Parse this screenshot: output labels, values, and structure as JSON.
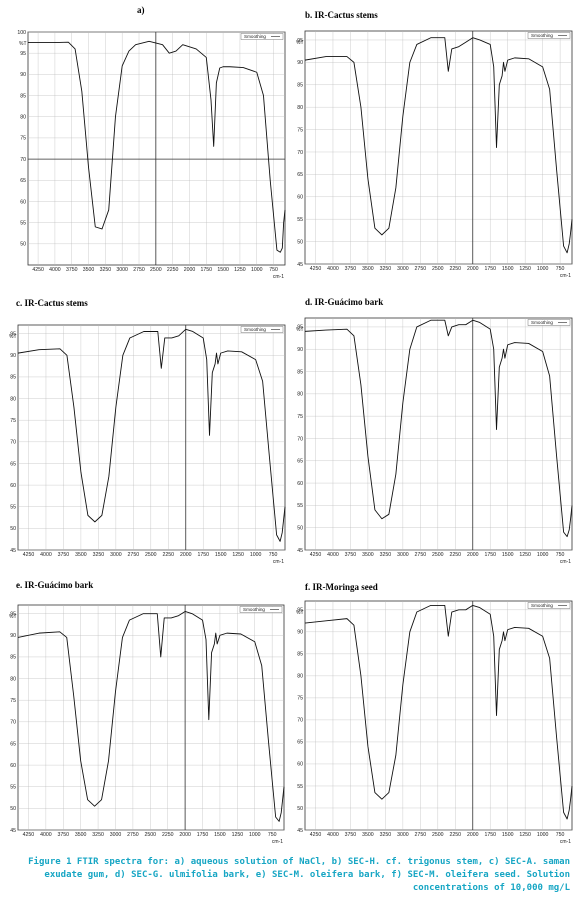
{
  "chart_data": [
    {
      "id": "a",
      "type": "line",
      "title": "a)",
      "xlabel": "cm-1",
      "ylabel": "%T",
      "legend": "Smoothing",
      "legend_position": "top-right",
      "grid": true,
      "xlim": [
        4400,
        580
      ],
      "ylim": [
        45,
        100
      ],
      "x_ticks": [
        4250,
        4000,
        3750,
        3500,
        3250,
        3000,
        2750,
        2500,
        2250,
        2000,
        1750,
        1500,
        1250,
        1000,
        750
      ],
      "y_ticks": [
        50,
        55,
        60,
        65,
        70,
        75,
        80,
        85,
        90,
        95,
        100
      ],
      "highlight_lines": {
        "x": 2500,
        "y": 70
      },
      "x": [
        4400,
        4000,
        3800,
        3700,
        3600,
        3500,
        3400,
        3300,
        3200,
        3100,
        3000,
        2900,
        2800,
        2600,
        2400,
        2300,
        2200,
        2100,
        1900,
        1750,
        1680,
        1640,
        1600,
        1550,
        1500,
        1400,
        1200,
        1000,
        900,
        800,
        700,
        650,
        620,
        600,
        580
      ],
      "y": [
        97.5,
        97.5,
        97.6,
        96,
        86,
        68,
        54,
        53.5,
        58,
        80,
        92,
        95.5,
        97,
        97.8,
        97,
        95,
        95.5,
        97,
        96,
        94,
        84,
        73,
        88,
        91.5,
        91.8,
        91.8,
        91.6,
        90.5,
        85,
        65,
        48.5,
        48,
        49,
        55,
        58
      ]
    },
    {
      "id": "b",
      "type": "line",
      "title": "b.  IR-Cactus stems",
      "xlabel": "cm-1",
      "ylabel": "%T",
      "legend": "Smoothing",
      "legend_position": "top-right",
      "grid": true,
      "xlim": [
        4400,
        580
      ],
      "ylim": [
        45,
        97
      ],
      "x_ticks": [
        4250,
        4000,
        3750,
        3500,
        3250,
        3000,
        2750,
        2500,
        2250,
        2000,
        1750,
        1500,
        1250,
        1000,
        750
      ],
      "y_ticks": [
        45,
        50,
        55,
        60,
        65,
        70,
        75,
        80,
        85,
        90,
        95
      ],
      "highlight_lines": {
        "x": 2000
      },
      "x": [
        4400,
        4100,
        3800,
        3700,
        3600,
        3500,
        3400,
        3300,
        3200,
        3100,
        3000,
        2900,
        2800,
        2600,
        2400,
        2350,
        2300,
        2200,
        2100,
        2000,
        1900,
        1750,
        1700,
        1660,
        1620,
        1580,
        1560,
        1540,
        1500,
        1400,
        1200,
        1000,
        900,
        800,
        700,
        650,
        620,
        600,
        580
      ],
      "y": [
        90.5,
        91.3,
        91.3,
        90,
        80,
        64,
        53,
        51.5,
        53,
        62,
        78,
        90,
        94,
        95.5,
        95.5,
        88,
        93,
        93.5,
        94.5,
        95.5,
        95,
        94,
        89,
        71,
        85,
        87,
        90,
        88,
        90.5,
        91,
        90.8,
        89,
        84,
        66,
        49,
        47.5,
        49.5,
        52,
        55
      ]
    },
    {
      "id": "c",
      "type": "line",
      "title": "c.  IR-Cactus stems",
      "xlabel": "cm-1",
      "ylabel": "%T",
      "legend": "Smoothing",
      "legend_position": "top-right",
      "grid": true,
      "xlim": [
        4400,
        580
      ],
      "ylim": [
        45,
        97
      ],
      "x_ticks": [
        4250,
        4000,
        3750,
        3500,
        3250,
        3000,
        2750,
        2500,
        2250,
        2000,
        1750,
        1500,
        1250,
        1000,
        750
      ],
      "y_ticks": [
        45,
        50,
        55,
        60,
        65,
        70,
        75,
        80,
        85,
        90,
        95
      ],
      "highlight_lines": {
        "x": 2000
      },
      "x": [
        4400,
        4100,
        3800,
        3700,
        3600,
        3500,
        3400,
        3300,
        3200,
        3100,
        3000,
        2900,
        2800,
        2600,
        2400,
        2350,
        2300,
        2200,
        2100,
        2000,
        1900,
        1750,
        1700,
        1660,
        1620,
        1580,
        1560,
        1540,
        1500,
        1400,
        1200,
        1000,
        900,
        800,
        700,
        650,
        620,
        600,
        580
      ],
      "y": [
        90.5,
        91.3,
        91.5,
        90,
        78,
        63,
        53,
        51.5,
        53,
        62,
        78,
        90,
        94,
        95.5,
        95.5,
        87,
        94,
        94,
        94.5,
        96,
        95.5,
        94,
        89,
        71.5,
        86,
        88,
        90.5,
        88,
        90.5,
        91,
        90.8,
        89,
        84,
        66,
        48.5,
        47,
        49,
        52,
        55
      ]
    },
    {
      "id": "d",
      "type": "line",
      "title": "d.  IR-Guácimo bark",
      "xlabel": "cm-1",
      "ylabel": "%T",
      "legend": "Smoothing",
      "legend_position": "top-right",
      "grid": true,
      "xlim": [
        4400,
        580
      ],
      "ylim": [
        45,
        97
      ],
      "x_ticks": [
        4250,
        4000,
        3750,
        3500,
        3250,
        3000,
        2750,
        2500,
        2250,
        2000,
        1750,
        1500,
        1250,
        1000,
        750
      ],
      "y_ticks": [
        45,
        50,
        55,
        60,
        65,
        70,
        75,
        80,
        85,
        90,
        95
      ],
      "highlight_lines": {
        "x": 2000
      },
      "x": [
        4400,
        4100,
        3800,
        3700,
        3600,
        3500,
        3400,
        3300,
        3200,
        3100,
        3000,
        2900,
        2800,
        2600,
        2400,
        2350,
        2300,
        2200,
        2100,
        2000,
        1900,
        1750,
        1700,
        1660,
        1620,
        1580,
        1560,
        1540,
        1500,
        1400,
        1200,
        1000,
        900,
        800,
        700,
        650,
        620,
        600,
        580
      ],
      "y": [
        94,
        94.3,
        94.5,
        93,
        82,
        66,
        54,
        52,
        53,
        62,
        78,
        90,
        95,
        96.5,
        96.5,
        93,
        95,
        95.5,
        95.5,
        96.5,
        96,
        94.5,
        90,
        72,
        86,
        88,
        90,
        88,
        91,
        91.5,
        91.3,
        89.5,
        84,
        66,
        49,
        48,
        49.5,
        52,
        55
      ]
    },
    {
      "id": "e",
      "type": "line",
      "title": "e.  IR-Guácimo bark",
      "xlabel": "cm-1",
      "ylabel": "%T",
      "legend": "Smoothing",
      "legend_position": "top-right",
      "grid": true,
      "xlim": [
        4400,
        580
      ],
      "ylim": [
        45,
        97
      ],
      "x_ticks": [
        4250,
        4000,
        3750,
        3500,
        3250,
        3000,
        2750,
        2500,
        2250,
        2000,
        1750,
        1500,
        1250,
        1000,
        750
      ],
      "y_ticks": [
        45,
        50,
        55,
        60,
        65,
        70,
        75,
        80,
        85,
        90,
        95
      ],
      "highlight_lines": {
        "x": 2000
      },
      "x": [
        4400,
        4100,
        3800,
        3700,
        3600,
        3500,
        3400,
        3300,
        3200,
        3100,
        3000,
        2900,
        2800,
        2600,
        2400,
        2350,
        2300,
        2200,
        2100,
        2000,
        1900,
        1750,
        1700,
        1660,
        1620,
        1580,
        1560,
        1540,
        1500,
        1400,
        1200,
        1000,
        900,
        800,
        700,
        650,
        620,
        600,
        580
      ],
      "y": [
        89.5,
        90.5,
        90.8,
        89.5,
        76,
        61,
        52,
        50.5,
        52,
        61,
        77,
        89.5,
        93.5,
        95,
        95,
        85,
        94,
        94,
        94.5,
        95.5,
        95,
        93.5,
        89,
        70.5,
        86,
        88,
        90.5,
        88,
        90,
        90.5,
        90.3,
        88.5,
        83,
        65,
        48,
        47,
        49,
        52,
        55
      ]
    },
    {
      "id": "f",
      "type": "line",
      "title": "f.  IR-Moringa seed",
      "xlabel": "cm-1",
      "ylabel": "%T",
      "legend": "Smoothing",
      "legend_position": "top-right",
      "grid": true,
      "xlim": [
        4400,
        580
      ],
      "ylim": [
        45,
        97
      ],
      "x_ticks": [
        4250,
        4000,
        3750,
        3500,
        3250,
        3000,
        2750,
        2500,
        2250,
        2000,
        1750,
        1500,
        1250,
        1000,
        750
      ],
      "y_ticks": [
        45,
        50,
        55,
        60,
        65,
        70,
        75,
        80,
        85,
        90,
        95
      ],
      "highlight_lines": {
        "x": 2000
      },
      "x": [
        4400,
        4100,
        3800,
        3700,
        3600,
        3500,
        3400,
        3300,
        3200,
        3100,
        3000,
        2900,
        2800,
        2600,
        2400,
        2350,
        2300,
        2200,
        2100,
        2000,
        1900,
        1750,
        1700,
        1660,
        1620,
        1580,
        1560,
        1540,
        1500,
        1400,
        1200,
        1000,
        900,
        800,
        700,
        650,
        620,
        600,
        580
      ],
      "y": [
        92,
        92.5,
        93,
        91.5,
        80,
        64,
        53.5,
        52,
        53.5,
        62,
        78,
        90,
        94.5,
        96,
        96,
        89,
        94.5,
        95,
        95,
        96,
        95.5,
        94,
        89,
        71,
        86,
        88,
        90,
        88,
        90.5,
        91,
        90.8,
        89,
        84,
        66,
        49,
        47.5,
        49.5,
        52,
        55
      ]
    }
  ],
  "caption": {
    "lead": "Figure 1",
    "text": " FTIR spectra for: a) aqueous solution of NaCl, b) SEC-H. cf. trigonus stem, c) SEC-A. saman exudate gum, d) SEC-G. ulmifolia bark, e) SEC-M. oleifera bark, f) SEC-M. oleifera seed. Solution concentrations of 10,000 mg/L"
  }
}
